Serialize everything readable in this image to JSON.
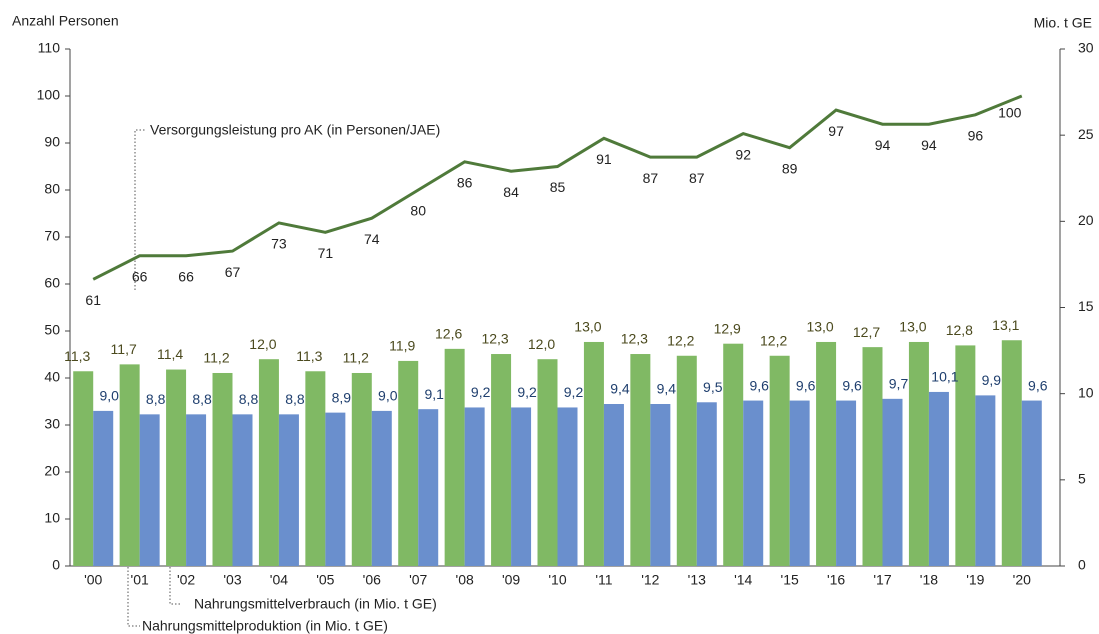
{
  "chart_data": {
    "type": "bar",
    "y_label": "Anzahl Personen",
    "y2_label": "Mio. t GE",
    "categories": [
      "'00",
      "'01",
      "'02",
      "'03",
      "'04",
      "'05",
      "'06",
      "'07",
      "'08",
      "'09",
      "'10",
      "'11",
      "'12",
      "'13",
      "'14",
      "'15",
      "'16",
      "'17",
      "'18",
      "'19",
      "'20"
    ],
    "ylim": [
      0,
      110
    ],
    "yticks": [
      0,
      10,
      20,
      30,
      40,
      50,
      60,
      70,
      80,
      90,
      100,
      110
    ],
    "y2lim": [
      0,
      30
    ],
    "y2ticks": [
      0,
      5,
      10,
      15,
      20,
      25,
      30
    ],
    "series": [
      {
        "name": "Nahrungsmittelproduktion (in Mio. t GE)",
        "type": "bar",
        "axis": "y2",
        "color": "#80b964",
        "label_color": "#4b4a1e",
        "values": [
          11.3,
          11.7,
          11.4,
          11.2,
          12.0,
          11.3,
          11.2,
          11.9,
          12.6,
          12.3,
          12.0,
          13.0,
          12.3,
          12.2,
          12.9,
          12.2,
          13.0,
          12.7,
          13.0,
          12.8,
          13.1
        ],
        "value_labels": [
          "11,3",
          "11,7",
          "11,4",
          "11,2",
          "12,0",
          "11,3",
          "11,2",
          "11,9",
          "12,6",
          "12,3",
          "12,0",
          "13,0",
          "12,3",
          "12,2",
          "12,9",
          "12,2",
          "13,0",
          "12,7",
          "13,0",
          "12,8",
          "13,1"
        ]
      },
      {
        "name": "Nahrungsmittelverbrauch (in Mio. t GE)",
        "type": "bar",
        "axis": "y2",
        "color": "#6a8fcd",
        "label_color": "#1f3f6e",
        "values": [
          9.0,
          8.8,
          8.8,
          8.8,
          8.8,
          8.9,
          9.0,
          9.1,
          9.2,
          9.2,
          9.2,
          9.4,
          9.4,
          9.5,
          9.6,
          9.6,
          9.6,
          9.7,
          10.1,
          9.9,
          9.6
        ],
        "value_labels": [
          "9,0",
          "8,8",
          "8,8",
          "8,8",
          "8,8",
          "8,9",
          "9,0",
          "9,1",
          "9,2",
          "9,2",
          "9,2",
          "9,4",
          "9,4",
          "9,5",
          "9,6",
          "9,6",
          "9,6",
          "9,7",
          "10,1",
          "9,9",
          "9,6"
        ]
      },
      {
        "name": "Versorgungsleistung pro AK (in Personen/JAE)",
        "type": "line",
        "axis": "y",
        "color": "#4f7a3a",
        "label_color": "#222",
        "values": [
          61,
          66,
          66,
          67,
          73,
          71,
          74,
          80,
          86,
          84,
          85,
          91,
          87,
          87,
          92,
          89,
          97,
          94,
          94,
          96,
          100
        ]
      }
    ]
  }
}
